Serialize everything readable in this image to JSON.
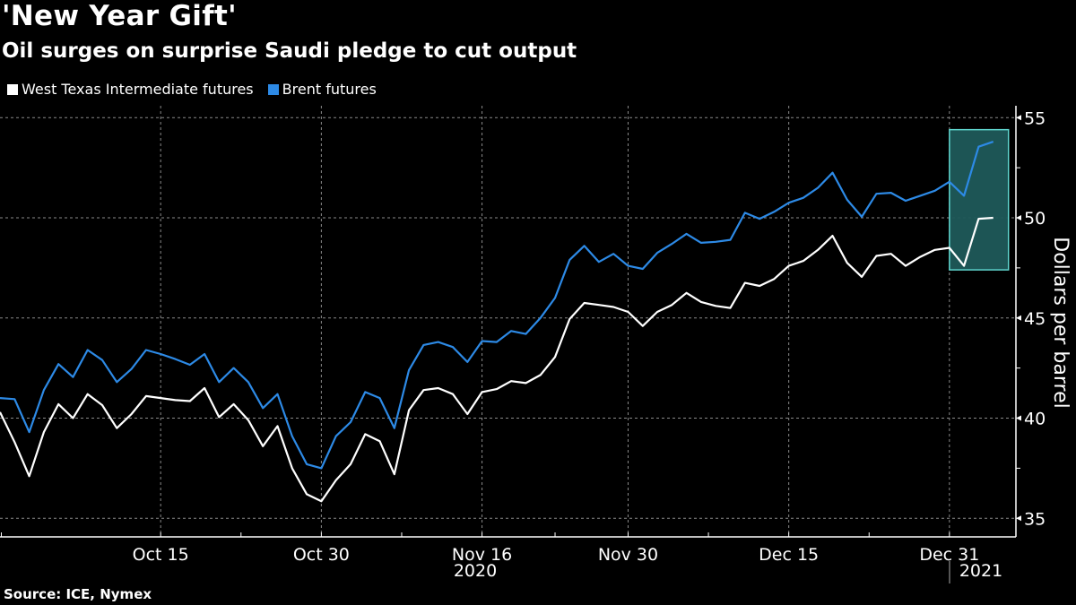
{
  "chart_data": {
    "type": "line",
    "title": "'New Year Gift'",
    "subtitle": "Oil surges on surprise Saudi pledge to cut output",
    "ylabel": "Dollars per barrel",
    "ylim": [
      34.5,
      55.6
    ],
    "yticks": [
      35,
      40,
      45,
      50,
      55
    ],
    "grid": true,
    "legend_position": "top-left",
    "x_tick_labels": [
      {
        "date": "2020-10-15",
        "label": "Oct 15"
      },
      {
        "date": "2020-10-30",
        "label": "Oct 30"
      },
      {
        "date": "2020-11-16",
        "label": "Nov 16"
      },
      {
        "date": "2020-11-30",
        "label": "Nov 30"
      },
      {
        "date": "2020-12-15",
        "label": "Dec 15"
      },
      {
        "date": "2020-12-31",
        "label": "Dec 31"
      }
    ],
    "year_labels": [
      "2020",
      "2021"
    ],
    "highlight": {
      "from": "2020-12-31",
      "to": "2021-01-06",
      "ymin": 47.4,
      "ymax": 54.4,
      "color": "#1f5a5a",
      "border": "#5fd6cf"
    },
    "x": [
      "2020-09-30",
      "2020-10-01",
      "2020-10-02",
      "2020-10-05",
      "2020-10-06",
      "2020-10-07",
      "2020-10-08",
      "2020-10-09",
      "2020-10-12",
      "2020-10-13",
      "2020-10-14",
      "2020-10-15",
      "2020-10-16",
      "2020-10-19",
      "2020-10-20",
      "2020-10-21",
      "2020-10-22",
      "2020-10-23",
      "2020-10-26",
      "2020-10-27",
      "2020-10-28",
      "2020-10-29",
      "2020-10-30",
      "2020-11-02",
      "2020-11-03",
      "2020-11-04",
      "2020-11-05",
      "2020-11-06",
      "2020-11-09",
      "2020-11-10",
      "2020-11-11",
      "2020-11-12",
      "2020-11-13",
      "2020-11-16",
      "2020-11-17",
      "2020-11-18",
      "2020-11-19",
      "2020-11-20",
      "2020-11-23",
      "2020-11-24",
      "2020-11-25",
      "2020-11-26",
      "2020-11-27",
      "2020-11-30",
      "2020-12-01",
      "2020-12-02",
      "2020-12-03",
      "2020-12-04",
      "2020-12-07",
      "2020-12-08",
      "2020-12-09",
      "2020-12-10",
      "2020-12-11",
      "2020-12-14",
      "2020-12-15",
      "2020-12-16",
      "2020-12-17",
      "2020-12-18",
      "2020-12-21",
      "2020-12-22",
      "2020-12-23",
      "2020-12-24",
      "2020-12-28",
      "2020-12-29",
      "2020-12-30",
      "2020-12-31",
      "2021-01-04",
      "2021-01-05",
      "2021-01-06"
    ],
    "series": [
      {
        "name": "West Texas Intermediate futures",
        "color": "#ffffff",
        "values": [
          40.3,
          38.8,
          37.1,
          39.3,
          40.7,
          40.0,
          41.2,
          40.65,
          39.5,
          40.2,
          41.1,
          41.0,
          40.9,
          40.85,
          41.5,
          40.05,
          40.7,
          39.9,
          38.6,
          39.6,
          37.5,
          36.2,
          35.85,
          36.9,
          37.7,
          39.2,
          38.85,
          37.2,
          40.4,
          41.4,
          41.5,
          41.2,
          40.2,
          41.3,
          41.45,
          41.85,
          41.75,
          42.15,
          43.05,
          44.95,
          45.75,
          45.65,
          45.55,
          45.3,
          44.6,
          45.3,
          45.65,
          46.25,
          45.8,
          45.6,
          45.5,
          46.75,
          46.6,
          46.95,
          47.6,
          47.85,
          48.4,
          49.1,
          47.75,
          47.05,
          48.1,
          48.2,
          47.6,
          48.05,
          48.4,
          48.5,
          47.6,
          49.95,
          50.0
        ]
      },
      {
        "name": "Brent futures",
        "color": "#2d8ae6",
        "values": [
          41.0,
          40.95,
          39.3,
          41.4,
          42.7,
          42.05,
          43.4,
          42.9,
          41.8,
          42.45,
          43.4,
          43.2,
          42.95,
          42.66,
          43.2,
          41.8,
          42.5,
          41.8,
          40.5,
          41.2,
          39.1,
          37.7,
          37.5,
          39.1,
          39.8,
          41.3,
          41.0,
          39.5,
          42.4,
          43.65,
          43.8,
          43.55,
          42.8,
          43.85,
          43.8,
          44.35,
          44.2,
          45.0,
          46.0,
          47.9,
          48.6,
          47.8,
          48.2,
          47.6,
          47.45,
          48.25,
          48.7,
          49.2,
          48.75,
          48.8,
          48.9,
          50.25,
          49.95,
          50.3,
          50.75,
          51.0,
          51.5,
          52.25,
          50.9,
          50.05,
          51.2,
          51.25,
          50.85,
          51.1,
          51.35,
          51.8,
          51.1,
          53.55,
          53.8
        ]
      }
    ]
  },
  "source": "Source: ICE, Nymex"
}
